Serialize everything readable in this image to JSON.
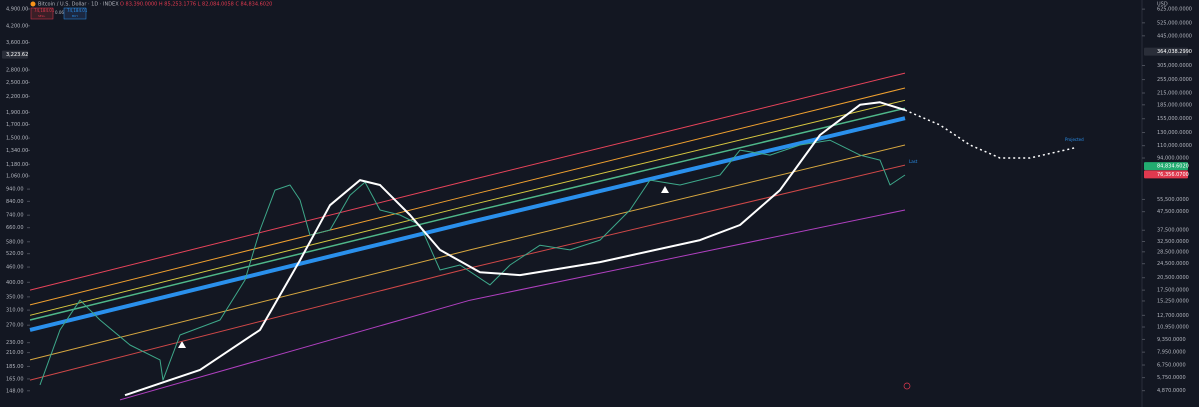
{
  "chart_data": {
    "type": "line",
    "title": "Bitcoin / U.S. Dollar · 1D · INDEX",
    "ohlc": "O 83,390.0000 H 85,253.1776 L 82,084.0058 C 84,834.6020",
    "currency": "USD",
    "sell_button": {
      "price": "74,184.01",
      "label": "SELL"
    },
    "buy_button": {
      "price": "74,184.01",
      "label": "BUY"
    },
    "spread": "0.06",
    "log_scale": true,
    "xlim": [
      0,
      111
    ],
    "ylim": [
      4325,
      702000
    ],
    "yticks": [
      {
        "value": 625000,
        "label": "625,000.0000"
      },
      {
        "value": 525000,
        "label": "525,000.0000"
      },
      {
        "value": 445000,
        "label": "445,000.0000"
      },
      {
        "value": 305000,
        "label": "305,000.0000"
      },
      {
        "value": 255000,
        "label": "255,000.0000"
      },
      {
        "value": 215000,
        "label": "215,000.0000"
      },
      {
        "value": 185000,
        "label": "185,000.0000"
      },
      {
        "value": 155000,
        "label": "155,000.0000"
      },
      {
        "value": 130000,
        "label": "130,000.0000"
      },
      {
        "value": 110000,
        "label": "110,000.0000"
      },
      {
        "value": 94000,
        "label": "94,000.0000"
      },
      {
        "value": 55500,
        "label": "55,500.0000"
      },
      {
        "value": 47500,
        "label": "47,500.0000"
      },
      {
        "value": 37500,
        "label": "37,500.0000"
      },
      {
        "value": 32500,
        "label": "32,500.0000"
      },
      {
        "value": 28500,
        "label": "28,500.0000"
      },
      {
        "value": 24500,
        "label": "24,500.0000"
      },
      {
        "value": 20500,
        "label": "20,500.0000"
      },
      {
        "value": 17500,
        "label": "17,500.0000"
      },
      {
        "value": 15250,
        "label": "15,250.0000"
      },
      {
        "value": 12700,
        "label": "12,700.0000"
      },
      {
        "value": 10950,
        "label": "10,950.0000"
      },
      {
        "value": 9350,
        "label": "9,350.0000"
      },
      {
        "value": 7950,
        "label": "7,950.0000"
      },
      {
        "value": 6750,
        "label": "6,750.0000"
      },
      {
        "value": 5750,
        "label": "5,750.0000"
      },
      {
        "value": 4870,
        "label": "4,870.0000"
      }
    ],
    "y2lim": [
      136,
      5320
    ],
    "y2ticks": [
      {
        "value": 4900,
        "label": "4,900.00"
      },
      {
        "value": 4200,
        "label": "4,200.00"
      },
      {
        "value": 3600,
        "label": "3,600.00"
      },
      {
        "value": 2800,
        "label": "2,800.00"
      },
      {
        "value": 2500,
        "label": "2,500.00"
      },
      {
        "value": 2200,
        "label": "2,200.00"
      },
      {
        "value": 1900,
        "label": "1,900.00"
      },
      {
        "value": 1700,
        "label": "1,700.00"
      },
      {
        "value": 1500,
        "label": "1,500.00"
      },
      {
        "value": 1340,
        "label": "1,340.00"
      },
      {
        "value": 1180,
        "label": "1,180.00"
      },
      {
        "value": 1060,
        "label": "1,060.00"
      },
      {
        "value": 940,
        "label": "940.00"
      },
      {
        "value": 840,
        "label": "840.00"
      },
      {
        "value": 740,
        "label": "740.00"
      },
      {
        "value": 660,
        "label": "660.00"
      },
      {
        "value": 580,
        "label": "580.00"
      },
      {
        "value": 520,
        "label": "520.00"
      },
      {
        "value": 460,
        "label": "460.00"
      },
      {
        "value": 400,
        "label": "400.00"
      },
      {
        "value": 350,
        "label": "350.00"
      },
      {
        "value": 310,
        "label": "310.00"
      },
      {
        "value": 270,
        "label": "270.00"
      },
      {
        "value": 230,
        "label": "230.00"
      },
      {
        "value": 210,
        "label": "210.00"
      },
      {
        "value": 185,
        "label": "185.00"
      },
      {
        "value": 165,
        "label": "165.00"
      },
      {
        "value": 148,
        "label": "148.00"
      }
    ],
    "y2_price_label": {
      "value": 3223.62,
      "label": "3,223.62"
    },
    "price_labels": [
      {
        "value": 364038.299,
        "label": "364,038.2990",
        "color": "#2a2e39"
      },
      {
        "value": 84834.602,
        "label": "84,834.6020",
        "color": "#22ab70"
      },
      {
        "value": 76356.07,
        "label": "76,356.0700",
        "color": "#e0394f"
      }
    ],
    "annotations": [
      "Projected",
      "Last"
    ],
    "series": [
      {
        "color": "#e8445a",
        "width": 1,
        "x": [
          0,
          44,
          87.5
        ],
        "values": [
          17500,
          71000,
          277000
        ]
      },
      {
        "color": "#f0a030",
        "width": 1,
        "x": [
          0,
          44,
          87.5
        ],
        "values": [
          14500,
          58600,
          229000
        ]
      },
      {
        "color": "#d8c840",
        "width": 1,
        "x": [
          0,
          44,
          87.5
        ],
        "values": [
          12700,
          51600,
          196000
        ]
      },
      {
        "color": "#4fb88a",
        "width": 1.5,
        "x": [
          0,
          44,
          87.5
        ],
        "values": [
          11970,
          47200,
          177000
        ]
      },
      {
        "color": "#2a90ec",
        "width": 4,
        "x": [
          0,
          44,
          87.5
        ],
        "values": [
          10550,
          41600,
          156000
        ]
      },
      {
        "color": "#d8a840",
        "width": 1,
        "x": [
          0,
          44,
          87.5
        ],
        "values": [
          7200,
          29200,
          111000
        ]
      },
      {
        "color": "#d04848",
        "width": 1,
        "x": [
          0,
          44,
          87.5
        ],
        "values": [
          5570,
          23200,
          85900
        ]
      },
      {
        "color": "#b040c0",
        "width": 1,
        "x": [
          9,
          44,
          87.5
        ],
        "values": [
          4330,
          15400,
          48500
        ]
      },
      {
        "color": "#3ea88a",
        "width": 1,
        "x": [
          1,
          3,
          5,
          7,
          10,
          13,
          13.3,
          15,
          19,
          21.5,
          23,
          24.5,
          26,
          27,
          28,
          30,
          32,
          33.5,
          35,
          37,
          39,
          41,
          43,
          46,
          48,
          51,
          54,
          57,
          60,
          62,
          65,
          69,
          71,
          74,
          77,
          80,
          83,
          85,
          86,
          87.5
        ],
        "values": [
          5240,
          10550,
          15400,
          11970,
          8710,
          7200,
          5570,
          9890,
          11970,
          19900,
          37600,
          62500,
          66700,
          55100,
          35200,
          37600,
          58600,
          69200,
          48500,
          45500,
          40100,
          22600,
          24100,
          18700,
          24100,
          31000,
          29200,
          33100,
          48500,
          71000,
          66700,
          75700,
          104000,
          97500,
          111000,
          118000,
          97500,
          91600,
          66700,
          75700
        ]
      },
      {
        "color": "#ffffff",
        "width": 2,
        "x": [
          9.5,
          17,
          23,
          27,
          30,
          33,
          35,
          38,
          41,
          45,
          49,
          57,
          67,
          71,
          75,
          79,
          83,
          85,
          87.5
        ],
        "values": [
          4600,
          6340,
          10550,
          25600,
          51600,
          71000,
          66700,
          45500,
          29200,
          22000,
          21200,
          25000,
          33100,
          40100,
          62500,
          126000,
          185000,
          191000,
          173000
        ]
      },
      {
        "color": "#ffffff",
        "width": 1.5,
        "dash": "2 3",
        "x": [
          87.5,
          91,
          94,
          97,
          100,
          104.5
        ],
        "values": [
          173000,
          143000,
          111000,
          94000,
          94000,
          107000
        ]
      }
    ]
  }
}
